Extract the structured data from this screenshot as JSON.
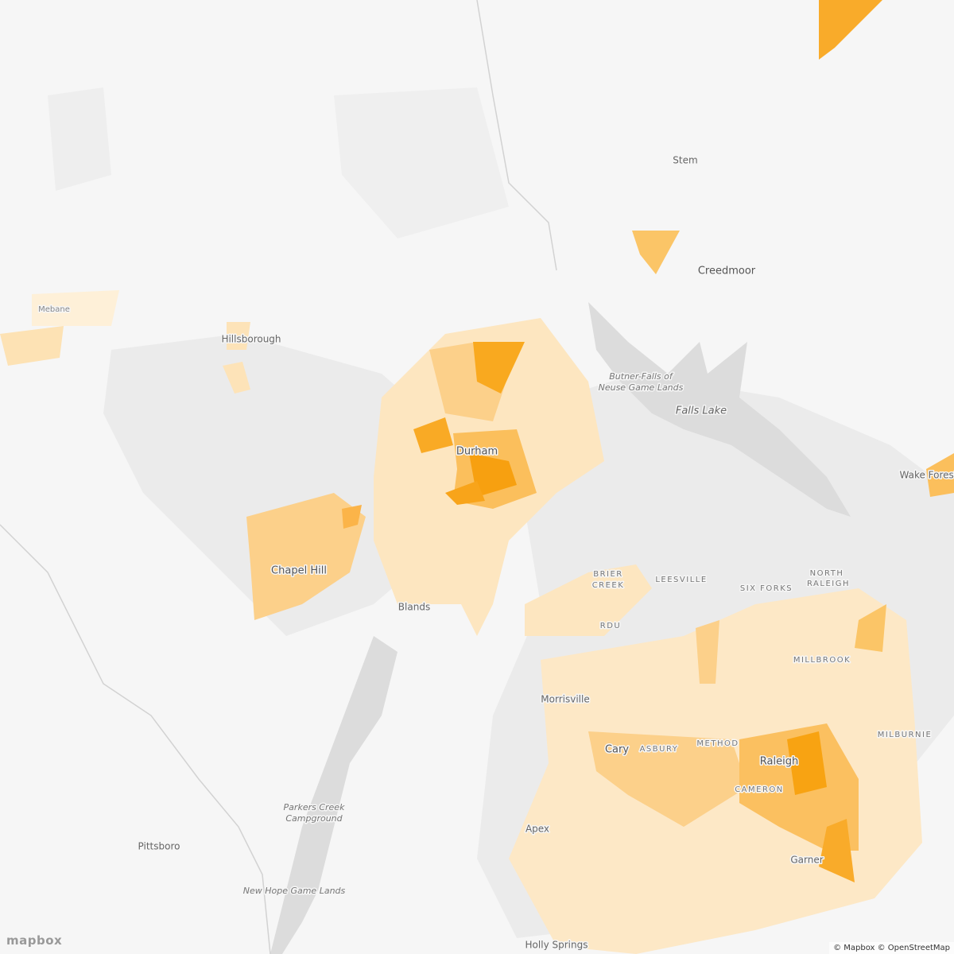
{
  "places": [
    {
      "name": "Stem"
    },
    {
      "name": "Creedmoor"
    },
    {
      "name": "Mebane"
    },
    {
      "name": "Hillsborough"
    },
    {
      "name": "Butner-Falls of"
    },
    {
      "name": "Neuse Game Lands"
    },
    {
      "name": "Falls Lake"
    },
    {
      "name": "Durham"
    },
    {
      "name": "Wake Forest"
    },
    {
      "name": "Chapel Hill"
    },
    {
      "name": "BRIER"
    },
    {
      "name": "CREEK"
    },
    {
      "name": "LEESVILLE"
    },
    {
      "name": "SIX FORKS"
    },
    {
      "name": "NORTH"
    },
    {
      "name": "RALEIGH"
    },
    {
      "name": "Blands"
    },
    {
      "name": "RDU"
    },
    {
      "name": "MILLBROOK"
    },
    {
      "name": "Morrisville"
    },
    {
      "name": "MILBURNIE"
    },
    {
      "name": "Cary"
    },
    {
      "name": "ASBURY"
    },
    {
      "name": "METHOD"
    },
    {
      "name": "Raleigh"
    },
    {
      "name": "CAMERON"
    },
    {
      "name": "Parkers Creek"
    },
    {
      "name": "Campground"
    },
    {
      "name": "Apex"
    },
    {
      "name": "Pittsboro"
    },
    {
      "name": "New Hope Game Lands"
    },
    {
      "name": "Holly Springs"
    },
    {
      "name": "Garner"
    }
  ],
  "attribution": "© Mapbox © OpenStreetMap",
  "logo": "mapbox"
}
